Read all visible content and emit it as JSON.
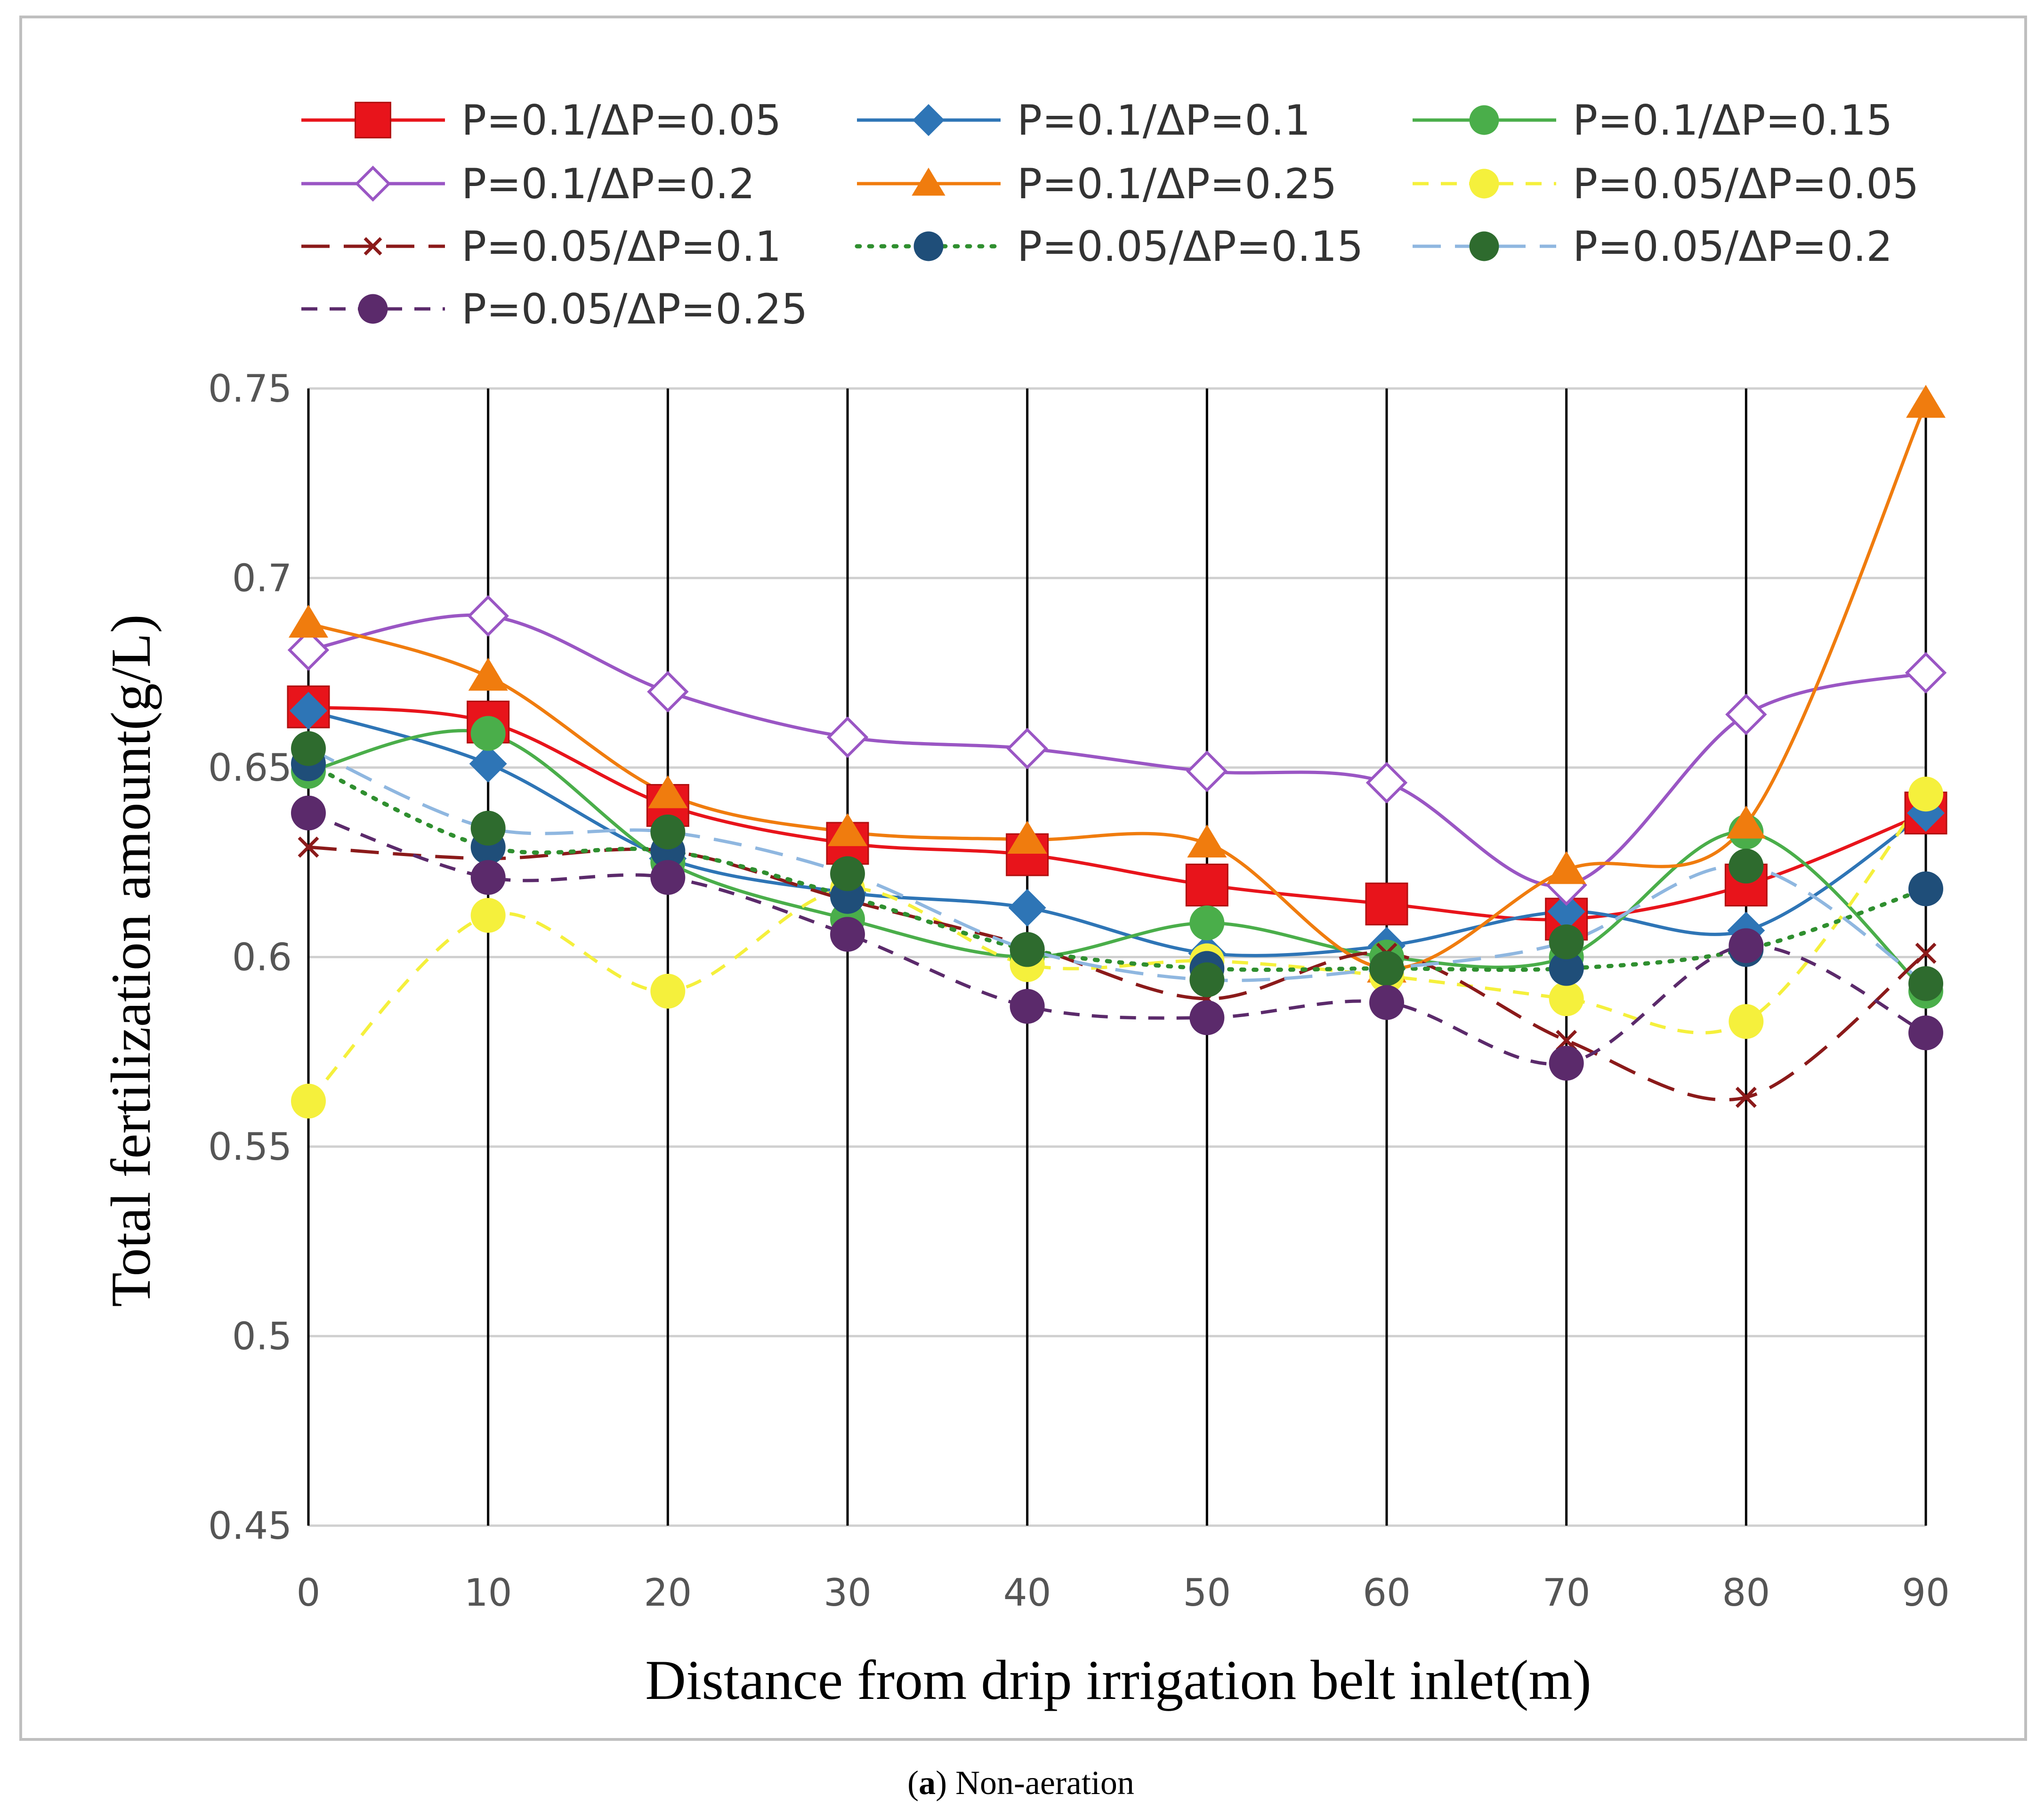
{
  "chart_data": {
    "type": "line",
    "title": "",
    "caption": {
      "label": "a",
      "text": " Non-aeration"
    },
    "xlabel": "Distance from drip irrigation belt inlet(m)",
    "ylabel": "Total fertilization amount(g/L)",
    "x": [
      0,
      10,
      20,
      30,
      40,
      50,
      60,
      70,
      80,
      90
    ],
    "x_tick_labels": [
      "0",
      "10",
      "20",
      "30",
      "40",
      "50",
      "60",
      "70",
      "80",
      "90"
    ],
    "ylim": [
      0.45,
      0.75
    ],
    "y_ticks": [
      0.45,
      0.5,
      0.55,
      0.6,
      0.65,
      0.7,
      0.75
    ],
    "y_tick_labels": [
      "0.45",
      "0.5",
      "0.55",
      "0.6",
      "0.65",
      "0.7",
      "0.75"
    ],
    "grid": "vertical and horizontal",
    "legend_position": "top",
    "series": [
      {
        "name": "P=0.1/ΔP=0.05",
        "color": "#e8141b",
        "dash": "solid",
        "marker": "square",
        "values": [
          0.666,
          0.662,
          0.64,
          0.63,
          0.627,
          0.619,
          0.614,
          0.61,
          0.619,
          0.638
        ]
      },
      {
        "name": "P=0.1/ΔP=0.1",
        "color": "#2e75b6",
        "dash": "solid",
        "marker": "diamond",
        "values": [
          0.665,
          0.651,
          0.626,
          0.617,
          0.613,
          0.601,
          0.603,
          0.612,
          0.607,
          0.638
        ]
      },
      {
        "name": "P=0.1/ΔP=0.15",
        "color": "#4aae4a",
        "dash": "solid",
        "marker": "circle",
        "values": [
          0.649,
          0.659,
          0.625,
          0.61,
          0.6,
          0.609,
          0.6,
          0.6,
          0.633,
          0.591
        ]
      },
      {
        "name": "P=0.1/ΔP=0.2",
        "color": "#9a56c4",
        "dash": "solid",
        "marker": "diamond-open",
        "values": [
          0.681,
          0.69,
          0.67,
          0.658,
          0.655,
          0.649,
          0.646,
          0.619,
          0.664,
          0.675
        ]
      },
      {
        "name": "P=0.1/ΔP=0.25",
        "color": "#f07c0e",
        "dash": "solid",
        "marker": "triangle",
        "values": [
          0.688,
          0.674,
          0.643,
          0.633,
          0.631,
          0.63,
          0.597,
          0.623,
          0.635,
          0.746
        ]
      },
      {
        "name": "P=0.05/ΔP=0.05",
        "color": "#f5f03c",
        "dash": "dash",
        "marker": "circle",
        "values": [
          0.562,
          0.611,
          0.591,
          0.618,
          0.598,
          0.599,
          0.595,
          0.589,
          0.583,
          0.643
        ]
      },
      {
        "name": "P=0.05/ΔP=0.1",
        "color": "#8b1a1a",
        "dash": "longdash",
        "marker": "x",
        "values": [
          0.629,
          0.626,
          0.628,
          0.615,
          0.603,
          0.589,
          0.601,
          0.578,
          0.563,
          0.601
        ]
      },
      {
        "name": "P=0.05/ΔP=0.15",
        "color": "#1f4e79",
        "dash": "dot",
        "dash_color": "#2f8f2f",
        "marker": "circle",
        "values": [
          0.651,
          0.629,
          0.628,
          0.616,
          0.602,
          0.597,
          0.597,
          0.597,
          0.602,
          0.618
        ]
      },
      {
        "name": "P=0.05/ΔP=0.2",
        "color": "#2e6b2e",
        "dash": "longdash",
        "dash_color": "#8fb7e0",
        "marker": "circle",
        "values": [
          0.655,
          0.634,
          0.633,
          0.622,
          0.602,
          0.594,
          0.597,
          0.604,
          0.624,
          0.593
        ]
      },
      {
        "name": "P=0.05/ΔP=0.25",
        "color": "#5b2a6b",
        "dash": "dash",
        "marker": "circle",
        "values": [
          0.638,
          0.621,
          0.621,
          0.606,
          0.587,
          0.584,
          0.588,
          0.572,
          0.603,
          0.58
        ]
      }
    ]
  }
}
